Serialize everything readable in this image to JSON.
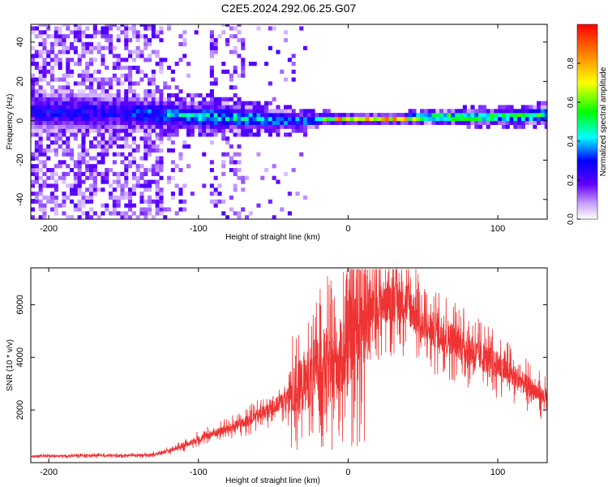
{
  "title": "C2E5.2024.292.06.25.G07",
  "chart_data": [
    {
      "type": "heatmap",
      "xlabel": "Height of straight line (km)",
      "ylabel": "Frequency (Hz)",
      "xlim": [
        -212,
        133
      ],
      "ylim": [
        -50,
        49
      ],
      "x_ticks": [
        -200,
        -100,
        0,
        100
      ],
      "y_ticks": [
        -40,
        -20,
        0,
        20,
        40
      ],
      "colorbar": {
        "label": "Normalized spectral amplitude",
        "range": [
          0,
          1
        ],
        "ticks": [
          "0.0",
          "0.2",
          "0.4",
          "0.6",
          "0.8"
        ],
        "colors": [
          "#ffffff",
          "#c8a0ff",
          "#6000ff",
          "#0000ff",
          "#00ffff",
          "#00ff00",
          "#ffff00",
          "#ff8000",
          "#ff0000"
        ]
      },
      "band": [
        {
          "x": -212,
          "center": 4,
          "width": 8,
          "amp": 0.3
        },
        {
          "x": -150,
          "center": 3,
          "width": 7,
          "amp": 0.3
        },
        {
          "x": -120,
          "center": 2,
          "width": 5,
          "amp": 0.45
        },
        {
          "x": -90,
          "center": 1,
          "width": 5,
          "amp": 0.5
        },
        {
          "x": -60,
          "center": 0,
          "width": 4,
          "amp": 0.45
        },
        {
          "x": -30,
          "center": -1,
          "width": 3,
          "amp": 0.4
        },
        {
          "x": -20,
          "center": 0,
          "width": 2,
          "amp": 0.6
        },
        {
          "x": 0,
          "center": 0,
          "width": 1.5,
          "amp": 0.95
        },
        {
          "x": 30,
          "center": 0,
          "width": 1.5,
          "amp": 0.9
        },
        {
          "x": 60,
          "center": 1,
          "width": 2,
          "amp": 0.7
        },
        {
          "x": 90,
          "center": 1,
          "width": 2.5,
          "amp": 0.6
        },
        {
          "x": 133,
          "center": 2,
          "width": 3,
          "amp": 0.55
        }
      ]
    },
    {
      "type": "line",
      "xlabel": "Height of straight line (km)",
      "ylabel": "SNR (10 * v/v)",
      "xlim": [
        -212,
        133
      ],
      "ylim": [
        0,
        7400
      ],
      "x_ticks": [
        -200,
        -100,
        0,
        100
      ],
      "y_ticks": [
        2000,
        4000,
        6000
      ],
      "color": "#ee3333",
      "x": [
        -212,
        -190,
        -170,
        -150,
        -130,
        -120,
        -110,
        -100,
        -90,
        -80,
        -70,
        -60,
        -50,
        -40,
        -30,
        -25,
        -20,
        -15,
        -10,
        -5,
        0,
        5,
        10,
        15,
        20,
        30,
        40,
        45,
        50,
        60,
        70,
        80,
        90,
        100,
        110,
        120,
        133
      ],
      "y": [
        250,
        250,
        270,
        270,
        300,
        450,
        650,
        900,
        1100,
        1300,
        1500,
        1800,
        2100,
        2500,
        3000,
        3300,
        3600,
        3800,
        3600,
        3900,
        4500,
        5200,
        5600,
        5800,
        6000,
        6200,
        6100,
        5600,
        5100,
        5000,
        4700,
        4300,
        4000,
        3700,
        3300,
        2900,
        2400
      ]
    }
  ]
}
